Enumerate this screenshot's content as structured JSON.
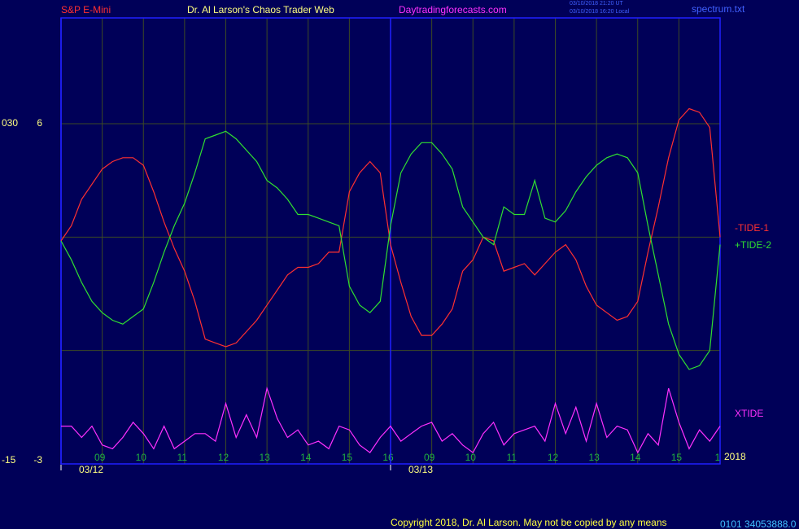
{
  "chart_data": {
    "type": "line",
    "title": "Dr. Al Larson's Chaos Trader Web",
    "symbol": "S&P E-Mini",
    "site": "Daytradingforecasts.com",
    "timestamps": [
      "03/10/2018 21:20 UT",
      "03/10/2018 16:20 Local"
    ],
    "file": "spectrum.txt",
    "year": "2018",
    "copyright": "Copyright 2018, Dr. Al Larson. May not be copied by any means",
    "code": "0101 34053888.0",
    "x": [
      0,
      0.25,
      0.5,
      0.75,
      1,
      1.25,
      1.5,
      1.75,
      2,
      2.25,
      2.5,
      2.75,
      3,
      3.25,
      3.5,
      3.75,
      4,
      4.25,
      4.5,
      4.75,
      5,
      5.25,
      5.5,
      5.75,
      6,
      6.25,
      6.5,
      6.75,
      7,
      7.25,
      7.5,
      7.75,
      8,
      8.25,
      8.5,
      8.75,
      9,
      9.25,
      9.5,
      9.75,
      10,
      10.25,
      10.5,
      10.75,
      11,
      11.25,
      11.5,
      11.75,
      12,
      12.25,
      12.5,
      12.75,
      13,
      13.25,
      13.5,
      13.75,
      14,
      14.25,
      14.5,
      14.75,
      15,
      15.25,
      15.5,
      15.75,
      16
    ],
    "xlim": [
      0,
      16
    ],
    "xticks": [
      {
        "value": 1,
        "label": "09"
      },
      {
        "value": 2,
        "label": "10"
      },
      {
        "value": 3,
        "label": "11"
      },
      {
        "value": 4,
        "label": "12"
      },
      {
        "value": 5,
        "label": "13"
      },
      {
        "value": 6,
        "label": "14"
      },
      {
        "value": 7,
        "label": "15"
      },
      {
        "value": 8,
        "label": "16"
      },
      {
        "value": 9,
        "label": "09"
      },
      {
        "value": 10,
        "label": "10"
      },
      {
        "value": 11,
        "label": "11"
      },
      {
        "value": 12,
        "label": "12"
      },
      {
        "value": 13,
        "label": "13"
      },
      {
        "value": 14,
        "label": "14"
      },
      {
        "value": 15,
        "label": "15"
      },
      {
        "value": 16,
        "label": "1"
      }
    ],
    "date_labels": [
      {
        "value": 0,
        "label": "03/12"
      },
      {
        "value": 8,
        "label": "03/13"
      }
    ],
    "ylim": [
      -3,
      8.8
    ],
    "yticks": [
      -3,
      6
    ],
    "grid_y": [
      0,
      3
    ],
    "y2lim": [
      -15,
      44
    ],
    "y2ticks": [
      -15,
      {
        "value": 30,
        "label": "030"
      }
    ],
    "grid": true,
    "series": [
      {
        "name": "-TIDE-1",
        "color": "#ff3030",
        "values": [
          2.9,
          3.3,
          4.0,
          4.4,
          4.8,
          5.0,
          5.1,
          5.1,
          4.9,
          4.2,
          3.4,
          2.7,
          2.1,
          1.3,
          0.3,
          0.2,
          0.1,
          0.2,
          0.5,
          0.8,
          1.2,
          1.6,
          2.0,
          2.2,
          2.2,
          2.3,
          2.6,
          2.6,
          4.2,
          4.7,
          5.0,
          4.7,
          2.8,
          1.8,
          0.9,
          0.4,
          0.4,
          0.7,
          1.1,
          2.1,
          2.4,
          3.0,
          2.9,
          2.1,
          2.2,
          2.3,
          2.0,
          2.3,
          2.6,
          2.8,
          2.4,
          1.7,
          1.2,
          1.0,
          0.8,
          0.9,
          1.3,
          2.6,
          3.8,
          5.1,
          6.1,
          6.4,
          6.3,
          5.9,
          3.0
        ]
      },
      {
        "name": "+TIDE-2",
        "color": "#30e030",
        "values": [
          2.9,
          2.4,
          1.8,
          1.3,
          1.0,
          0.8,
          0.7,
          0.9,
          1.1,
          1.8,
          2.6,
          3.3,
          3.9,
          4.7,
          5.6,
          5.7,
          5.8,
          5.6,
          5.3,
          5.0,
          4.5,
          4.3,
          4.0,
          3.6,
          3.6,
          3.5,
          3.4,
          3.3,
          1.7,
          1.2,
          1.0,
          1.3,
          3.3,
          4.7,
          5.2,
          5.5,
          5.5,
          5.2,
          4.8,
          3.8,
          3.4,
          3.0,
          2.8,
          3.8,
          3.6,
          3.6,
          4.5,
          3.5,
          3.4,
          3.7,
          4.2,
          4.6,
          4.9,
          5.1,
          5.2,
          5.1,
          4.7,
          3.3,
          2.0,
          0.7,
          -0.1,
          -0.5,
          -0.4,
          0.0,
          2.8
        ]
      },
      {
        "name": "XTIDE",
        "color": "#ff30ff",
        "values": [
          -2.0,
          -2.0,
          -2.3,
          -2.0,
          -2.5,
          -2.6,
          -2.3,
          -1.9,
          -2.2,
          -2.6,
          -2.0,
          -2.6,
          -2.4,
          -2.2,
          -2.2,
          -2.4,
          -1.4,
          -2.3,
          -1.7,
          -2.3,
          -1.0,
          -1.8,
          -2.3,
          -2.1,
          -2.5,
          -2.4,
          -2.6,
          -2.0,
          -2.1,
          -2.5,
          -2.7,
          -2.3,
          -2.0,
          -2.4,
          -2.2,
          -2.0,
          -1.9,
          -2.4,
          -2.2,
          -2.5,
          -2.7,
          -2.2,
          -1.9,
          -2.5,
          -2.2,
          -2.1,
          -2.0,
          -2.4,
          -1.4,
          -2.2,
          -1.5,
          -2.4,
          -1.4,
          -2.3,
          -2.0,
          -2.1,
          -2.7,
          -2.2,
          -2.5,
          -1.0,
          -1.9,
          -2.6,
          -2.1,
          -2.4,
          -2.0
        ]
      }
    ]
  }
}
